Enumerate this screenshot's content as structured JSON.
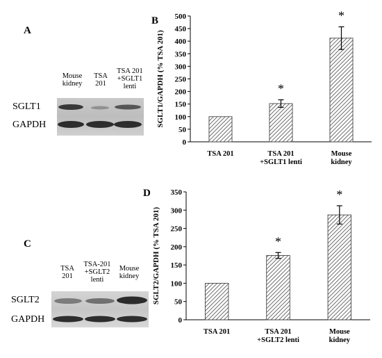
{
  "panels": {
    "A": {
      "letter": "A",
      "lanes": [
        "Mouse\nkidney",
        "TSA\n201",
        "TSA 201\n+SGLT1\nlenti"
      ],
      "rows": [
        "SGLT1",
        "GAPDH"
      ]
    },
    "C": {
      "letter": "C",
      "lanes": [
        "TSA\n201",
        "TSA-201\n+SGLT2\nlenti",
        "Mouse\nkidney"
      ],
      "rows": [
        "SGLT2",
        "GAPDH"
      ]
    }
  },
  "chart_data": [
    {
      "type": "bar",
      "panel": "B",
      "categories": [
        "TSA 201",
        "TSA 201\n+SGLT1 lenti",
        "Mouse\nkidney"
      ],
      "values": [
        100,
        152,
        412
      ],
      "errors": [
        0,
        15,
        45
      ],
      "significance": [
        "",
        "*",
        "*"
      ],
      "ylabel": "SGLT1/GAPDH (% TSA 201)",
      "ylim": [
        0,
        500
      ],
      "yticks": [
        "0",
        "50",
        "100",
        "150",
        "200",
        "250",
        "300",
        "350",
        "400",
        "450",
        "500"
      ],
      "grid": false,
      "bar_fill": "diagonal-hatch"
    },
    {
      "type": "bar",
      "panel": "D",
      "categories": [
        "TSA 201",
        "TSA 201\n+SGLT2 lenti",
        "Mouse\nkidney"
      ],
      "values": [
        100,
        176,
        287
      ],
      "errors": [
        0,
        8,
        25
      ],
      "significance": [
        "",
        "*",
        "*"
      ],
      "ylabel": "SGLT2/GAPDH (% TSA 201)",
      "ylim": [
        0,
        350
      ],
      "yticks": [
        "0",
        "50",
        "100",
        "150",
        "200",
        "250",
        "300",
        "350"
      ],
      "grid": false,
      "bar_fill": "diagonal-hatch"
    }
  ],
  "colors": {
    "bar_stroke": "#333333",
    "hatch": "#4a4a4a",
    "band": "#202020"
  }
}
